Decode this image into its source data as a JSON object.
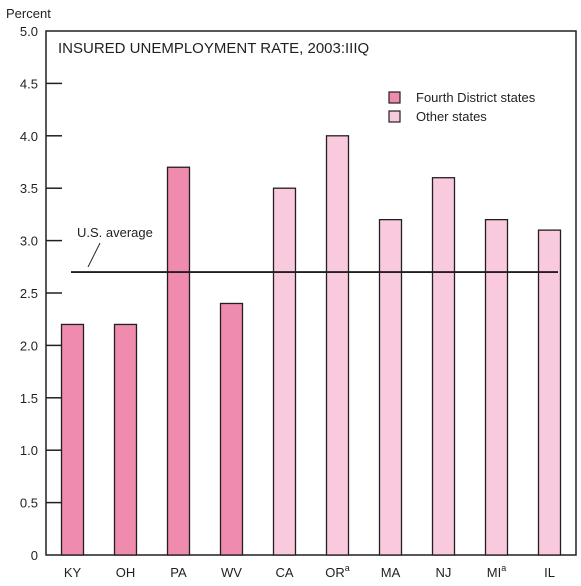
{
  "chart_data": {
    "type": "bar",
    "title": "INSURED UNEMPLOYMENT RATE, 2003:IIIQ",
    "ylabel": "Percent",
    "xlabel": "",
    "ylim": [
      0,
      5.0
    ],
    "yticks": [
      "0",
      "0.5",
      "1.0",
      "1.5",
      "2.0",
      "2.5",
      "3.0",
      "3.5",
      "4.0",
      "4.5",
      "5.0"
    ],
    "categories": [
      {
        "label": "KY",
        "sup": ""
      },
      {
        "label": "OH",
        "sup": ""
      },
      {
        "label": "PA",
        "sup": ""
      },
      {
        "label": "WV",
        "sup": ""
      },
      {
        "label": "CA",
        "sup": ""
      },
      {
        "label": "OR",
        "sup": "a"
      },
      {
        "label": "MA",
        "sup": ""
      },
      {
        "label": "NJ",
        "sup": ""
      },
      {
        "label": "MI",
        "sup": "a"
      },
      {
        "label": "IL",
        "sup": ""
      }
    ],
    "values": [
      2.2,
      2.2,
      3.7,
      2.4,
      3.5,
      4.0,
      3.2,
      3.6,
      3.2,
      3.1
    ],
    "groups": [
      0,
      0,
      0,
      0,
      1,
      1,
      1,
      1,
      1,
      1
    ],
    "legend": [
      "Fourth District states",
      "Other states"
    ],
    "legend_position": "top-right",
    "colors": [
      "#ee8bae",
      "#f9c9de"
    ],
    "reference_line": {
      "label": "U.S. average",
      "value": 2.7
    },
    "grid": false
  }
}
